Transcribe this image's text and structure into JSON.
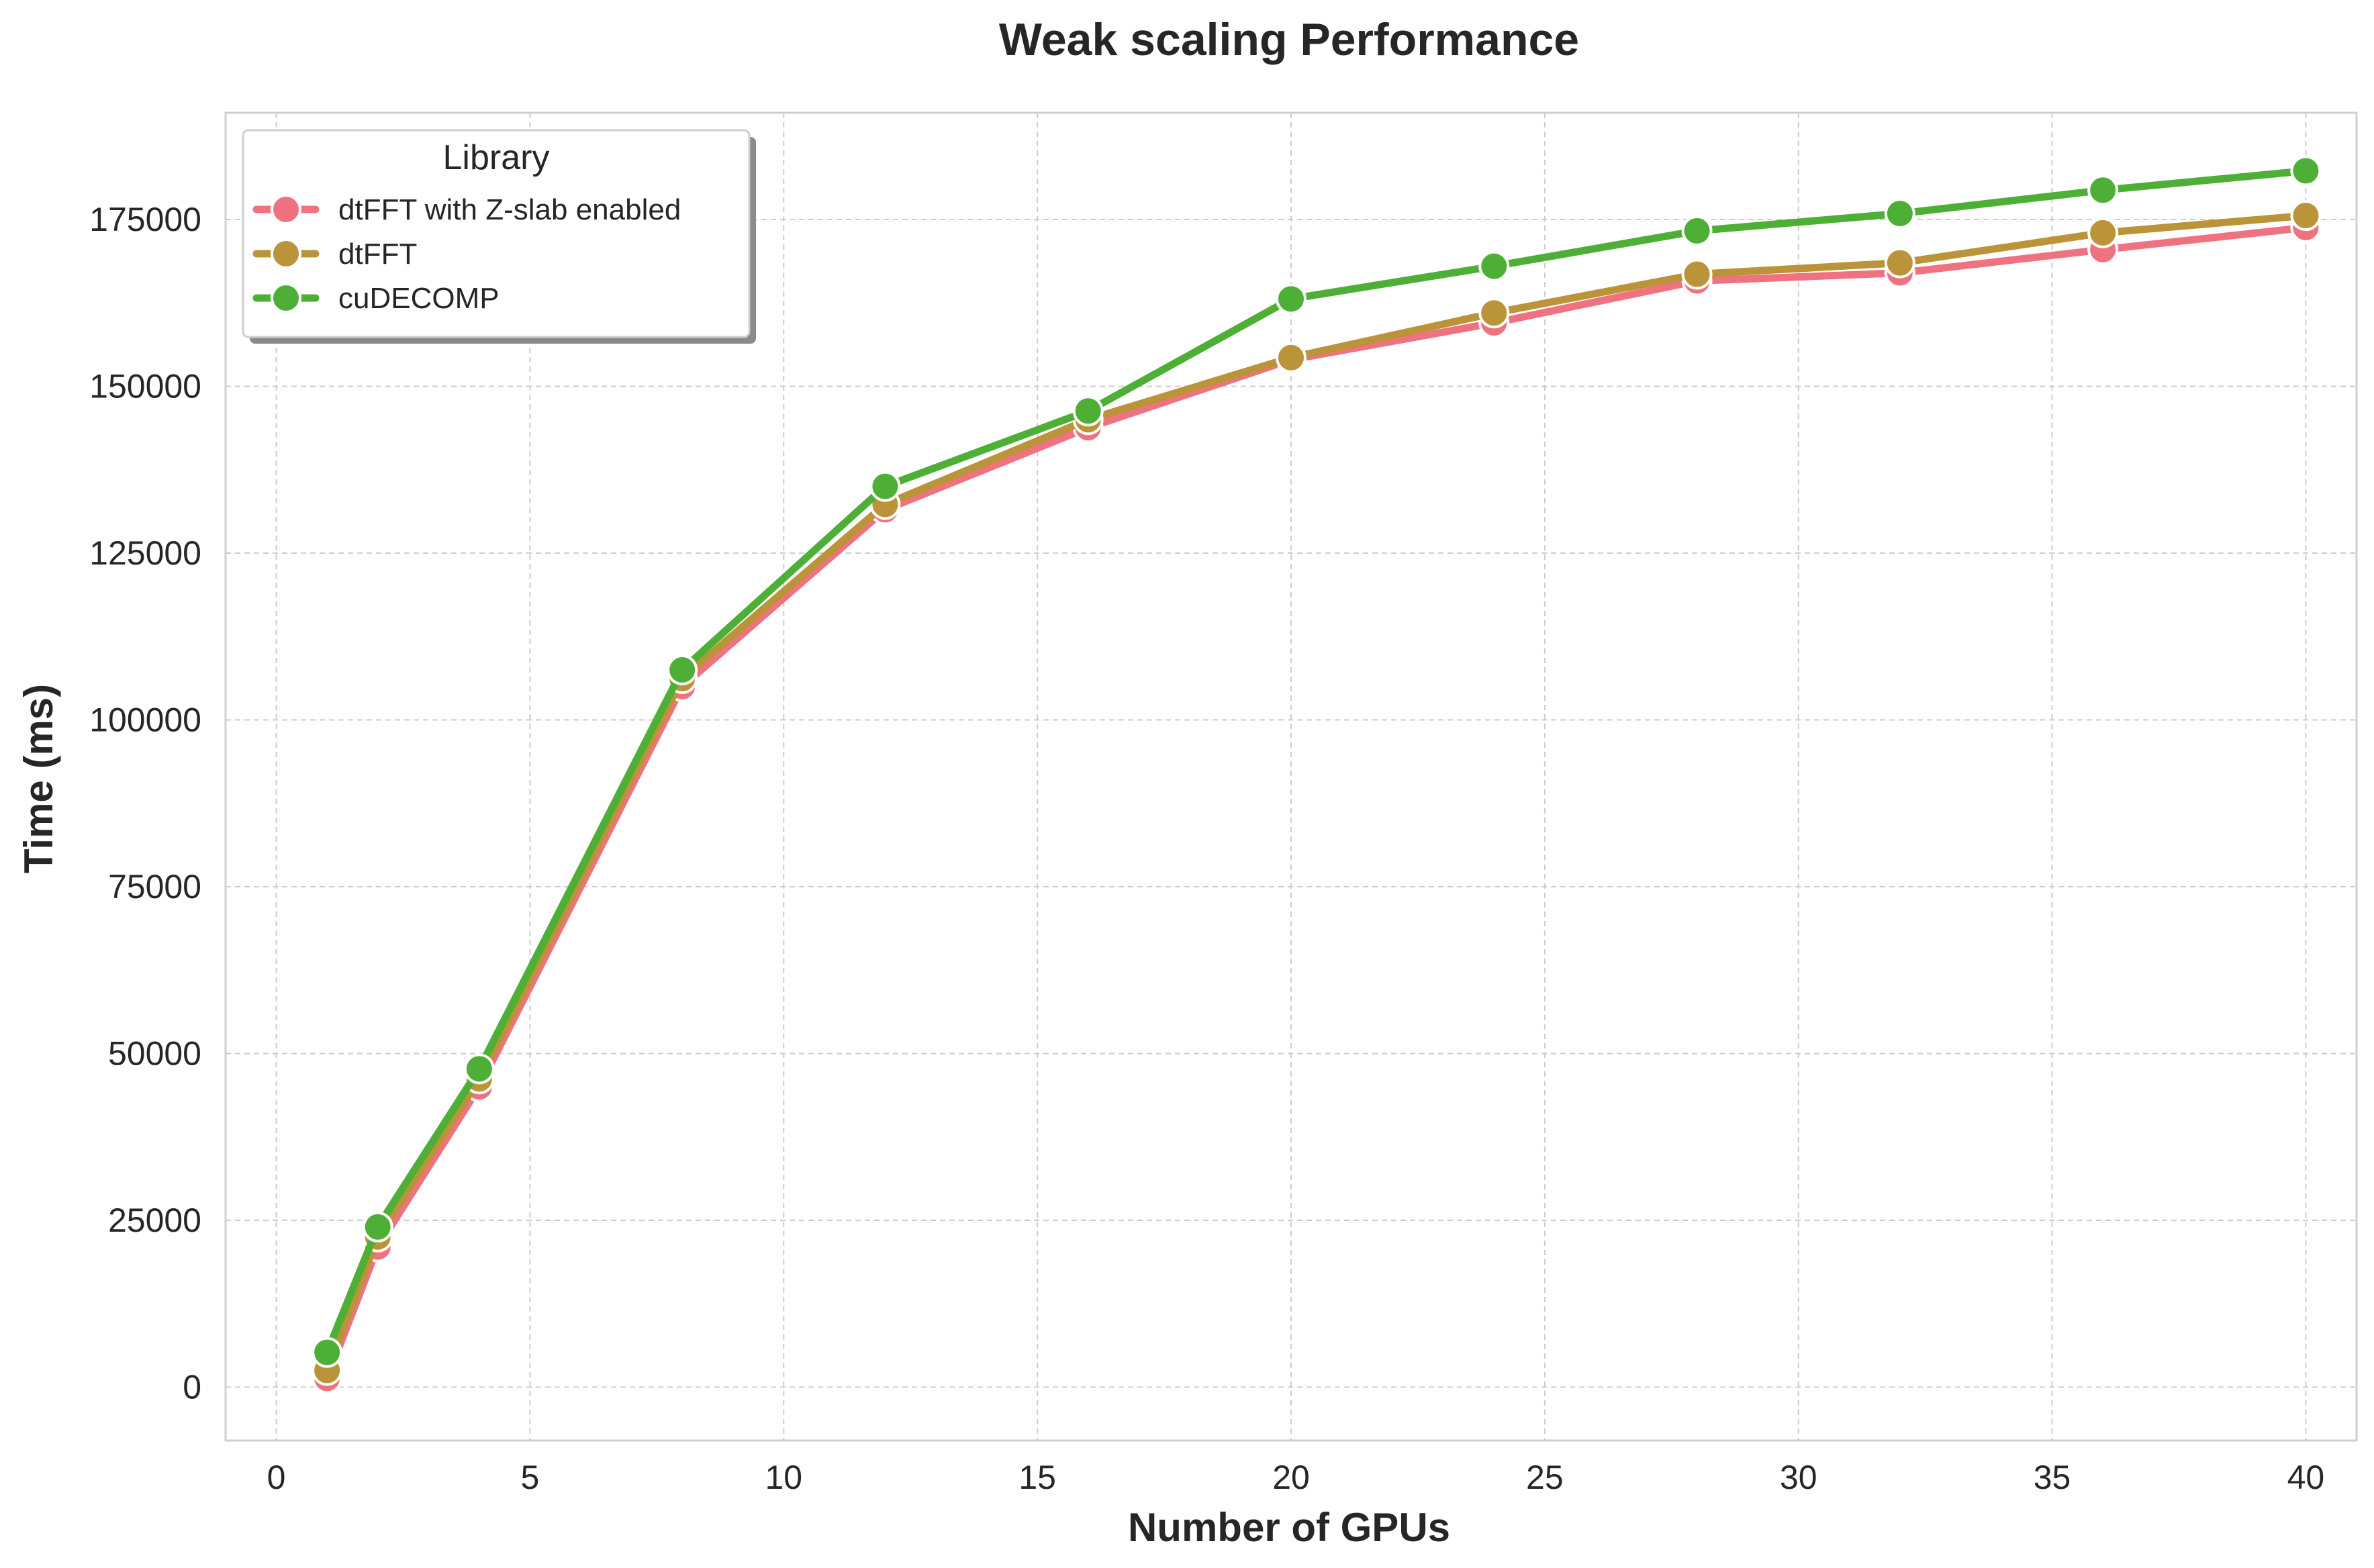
{
  "chart_data": {
    "type": "line",
    "title": "Weak scaling Performance",
    "xlabel": "Number of GPUs",
    "ylabel": "Time (ms)",
    "xlim": [
      -1,
      41
    ],
    "ylim": [
      -8000,
      191000
    ],
    "xticks": [
      0,
      5,
      10,
      15,
      20,
      25,
      30,
      35,
      40
    ],
    "yticks": [
      0,
      25000,
      50000,
      75000,
      100000,
      125000,
      150000,
      175000
    ],
    "grid": true,
    "legend": {
      "title": "Library",
      "position": "top-left"
    },
    "series": [
      {
        "name": "dtFFT with Z-slab enabled",
        "color": "#f0717f",
        "x": [
          1,
          2,
          4,
          8,
          12,
          16,
          20,
          24,
          28,
          32,
          36,
          40
        ],
        "y": [
          1300,
          21000,
          45000,
          105000,
          131500,
          143800,
          154000,
          159500,
          165800,
          167000,
          170500,
          173800
        ]
      },
      {
        "name": "dtFFT",
        "color": "#bb9338",
        "x": [
          1,
          2,
          4,
          8,
          12,
          16,
          20,
          24,
          28,
          32,
          36,
          40
        ],
        "y": [
          2500,
          22500,
          46200,
          106200,
          132300,
          145000,
          154300,
          161000,
          166800,
          168500,
          173000,
          175600
        ]
      },
      {
        "name": "cuDECOMP",
        "color": "#4daf35",
        "x": [
          1,
          2,
          4,
          8,
          12,
          16,
          20,
          24,
          28,
          32,
          36,
          40
        ],
        "y": [
          5200,
          24000,
          47700,
          107500,
          135000,
          146300,
          163100,
          168000,
          173300,
          175900,
          179400,
          182300
        ]
      }
    ]
  }
}
